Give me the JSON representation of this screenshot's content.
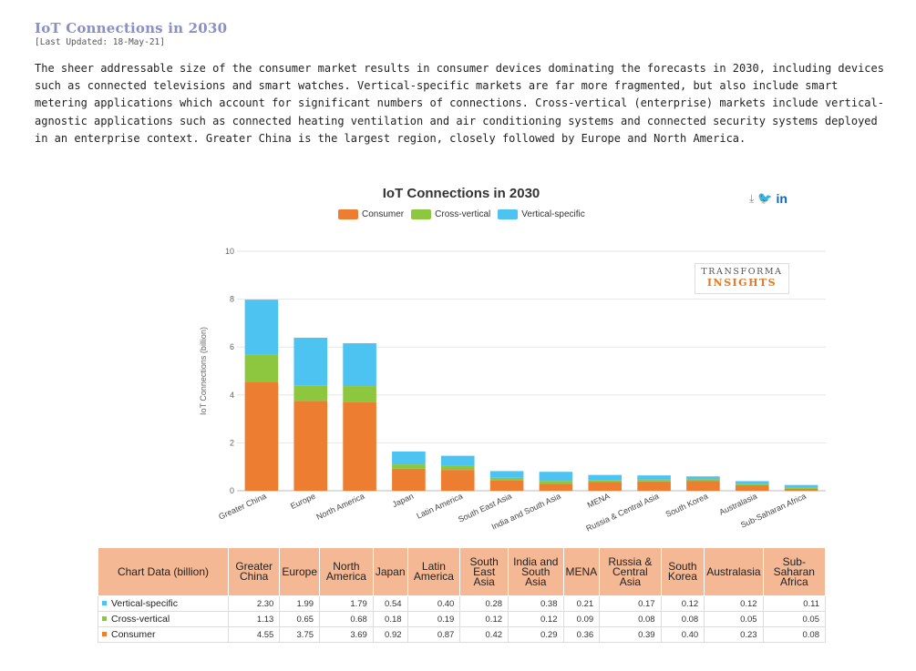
{
  "page": {
    "title": "IoT Connections in 2030",
    "updated": "[Last Updated: 18-May-21]",
    "intro": "The sheer addressable size of the consumer market results in consumer devices dominating the forecasts in 2030, including devices such as connected televisions and smart watches. Vertical-specific markets are far more fragmented, but also include smart metering applications which account for significant numbers of connections. Cross-vertical (enterprise) markets include vertical-agnostic applications such as connected heating ventilation and air conditioning systems and connected security systems deployed in an enterprise context. Greater China is the largest region, closely followed by Europe and North America."
  },
  "logo": {
    "line1": "TRANSFORMA",
    "line2": "INSIGHTS"
  },
  "share": {
    "download_icon": "download-icon",
    "twitter_icon": "twitter-icon",
    "linkedin_icon": "linkedin-icon",
    "linkedin_text": "in"
  },
  "colors": {
    "Consumer": "#ed7d31",
    "Cross-vertical": "#8dc63f",
    "Vertical-specific": "#4cc3f0"
  },
  "chart_data": {
    "type": "bar",
    "stacked": true,
    "title": "IoT Connections in 2030",
    "ylabel": "IoT Connections (billion)",
    "xlabel": "",
    "ylim": [
      0,
      10
    ],
    "yticks": [
      0,
      2,
      4,
      6,
      8,
      10
    ],
    "grid": true,
    "legend_position": "top",
    "categories": [
      "Greater China",
      "Europe",
      "North America",
      "Japan",
      "Latin America",
      "South East Asia",
      "India and South Asia",
      "MENA",
      "Russia & Central Asia",
      "South Korea",
      "Australasia",
      "Sub-Saharan Africa"
    ],
    "series": [
      {
        "name": "Consumer",
        "color": "#ed7d31",
        "values": [
          4.55,
          3.75,
          3.69,
          0.92,
          0.87,
          0.42,
          0.29,
          0.36,
          0.39,
          0.4,
          0.23,
          0.08
        ]
      },
      {
        "name": "Cross-vertical",
        "color": "#8dc63f",
        "values": [
          1.13,
          0.65,
          0.68,
          0.18,
          0.19,
          0.12,
          0.12,
          0.09,
          0.08,
          0.08,
          0.05,
          0.05
        ]
      },
      {
        "name": "Vertical-specific",
        "color": "#4cc3f0",
        "values": [
          2.3,
          1.99,
          1.79,
          0.54,
          0.4,
          0.28,
          0.38,
          0.21,
          0.17,
          0.12,
          0.12,
          0.11
        ]
      }
    ]
  },
  "table": {
    "header_first": "Chart Data (billion)",
    "headers": [
      "Greater China",
      "Europe",
      "North America",
      "Japan",
      "Latin America",
      "South East Asia",
      "India and South Asia",
      "MENA",
      "Russia & Central Asia",
      "South Korea",
      "Australasia",
      "Sub-Saharan Africa"
    ],
    "rows": [
      {
        "label": "Vertical-specific",
        "color": "#4cc3f0",
        "values": [
          "2.30",
          "1.99",
          "1.79",
          "0.54",
          "0.40",
          "0.28",
          "0.38",
          "0.21",
          "0.17",
          "0.12",
          "0.12",
          "0.11"
        ]
      },
      {
        "label": "Cross-vertical",
        "color": "#8dc63f",
        "values": [
          "1.13",
          "0.65",
          "0.68",
          "0.18",
          "0.19",
          "0.12",
          "0.12",
          "0.09",
          "0.08",
          "0.08",
          "0.05",
          "0.05"
        ]
      },
      {
        "label": "Consumer",
        "color": "#ed7d31",
        "values": [
          "4.55",
          "3.75",
          "3.69",
          "0.92",
          "0.87",
          "0.42",
          "0.29",
          "0.36",
          "0.39",
          "0.40",
          "0.23",
          "0.08"
        ]
      }
    ]
  }
}
